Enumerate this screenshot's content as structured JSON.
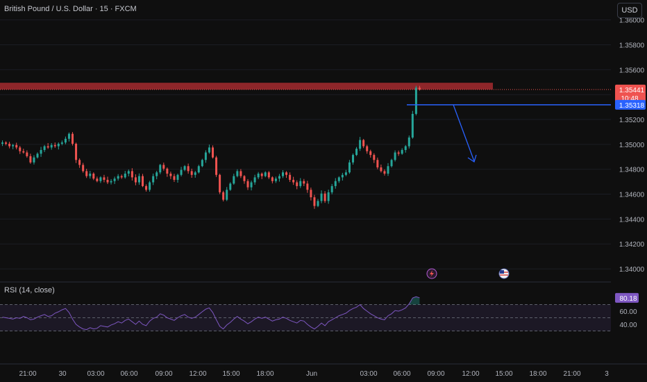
{
  "header": {
    "symbol": "British Pound / U.S. Dollar · 15 · FXCM",
    "currency": "USD"
  },
  "rsi": {
    "label": "RSI (14, close)",
    "value": "80.18",
    "ticks": [
      "60.00",
      "40.00"
    ]
  },
  "price_axis": {
    "ticks": [
      "1.36000",
      "1.35800",
      "1.35600",
      "1.35200",
      "1.35000",
      "1.34800",
      "1.34600",
      "1.34400",
      "1.34200",
      "1.34000"
    ],
    "last_price": "1.35441",
    "countdown": "10:48",
    "level_price": "1.35318"
  },
  "time_axis": {
    "ticks": [
      "21:00",
      "30",
      "03:00",
      "06:00",
      "09:00",
      "12:00",
      "15:00",
      "18:00",
      "Jun",
      "03:00",
      "06:00",
      "09:00",
      "12:00",
      "15:00",
      "18:00",
      "21:00",
      "3"
    ]
  },
  "colors": {
    "up": "#26a69a",
    "down": "#ef5350",
    "zone": "#a52a2f",
    "level": "#2962ff",
    "rsi": "#7e57c2"
  },
  "icons": [
    "flash-event-icon",
    "us-flag-event-icon"
  ],
  "chart_data": {
    "type": "candlestick",
    "symbol": "British Pound / U.S. Dollar",
    "interval": "15",
    "source": "FXCM",
    "last_price": 1.35441,
    "price_range": [
      1.339,
      1.3616
    ],
    "resistance_zone": [
      1.35441,
      1.35495
    ],
    "horizontal_level": 1.35318,
    "close": [
      1.35015,
      1.35005,
      1.34985,
      1.34995,
      1.34975,
      1.34945,
      1.34935,
      1.34905,
      1.34855,
      1.34895,
      1.34925,
      1.34955,
      1.34985,
      1.34975,
      1.34995,
      1.34985,
      1.35005,
      1.35015,
      1.35045,
      1.35085,
      1.35005,
      1.34875,
      1.34835,
      1.34785,
      1.34745,
      1.34765,
      1.34725,
      1.34705,
      1.34735,
      1.34715,
      1.34695,
      1.34705,
      1.34725,
      1.34745,
      1.34735,
      1.34765,
      1.34785,
      1.34735,
      1.34695,
      1.34745,
      1.34665,
      1.34635,
      1.34695,
      1.34745,
      1.34775,
      1.34835,
      1.34805,
      1.34765,
      1.34745,
      1.34715,
      1.34755,
      1.34795,
      1.34825,
      1.34785,
      1.34755,
      1.34775,
      1.34825,
      1.34875,
      1.34935,
      1.34975,
      1.34895,
      1.34755,
      1.34615,
      1.34555,
      1.34635,
      1.34685,
      1.34745,
      1.34785,
      1.34745,
      1.34705,
      1.34655,
      1.34695,
      1.34735,
      1.34765,
      1.34745,
      1.34775,
      1.34735,
      1.34705,
      1.34725,
      1.34745,
      1.34775,
      1.34755,
      1.34715,
      1.34695,
      1.34665,
      1.34705,
      1.34685,
      1.34635,
      1.34575,
      1.34505,
      1.34545,
      1.34605,
      1.34545,
      1.34615,
      1.34665,
      1.34705,
      1.34735,
      1.34755,
      1.34775,
      1.34855,
      1.34915,
      1.34965,
      1.35035,
      1.34985,
      1.34945,
      1.34915,
      1.34875,
      1.34815,
      1.34785,
      1.34765,
      1.34825,
      1.34875,
      1.34935,
      1.34925,
      1.34955,
      1.34985,
      1.35055,
      1.35245,
      1.35455,
      1.35441
    ],
    "rsi": [
      51,
      50,
      49,
      48,
      50,
      49,
      52,
      50,
      47,
      48,
      51,
      53,
      55,
      52,
      53,
      57,
      59,
      62,
      64,
      58,
      48,
      40,
      36,
      33,
      32,
      35,
      33,
      34,
      38,
      37,
      36,
      39,
      41,
      44,
      42,
      46,
      48,
      44,
      40,
      45,
      40,
      38,
      45,
      49,
      51,
      56,
      54,
      50,
      48,
      46,
      50,
      53,
      55,
      51,
      49,
      51,
      55,
      59,
      63,
      65,
      58,
      47,
      37,
      33,
      39,
      43,
      48,
      52,
      48,
      45,
      41,
      44,
      48,
      51,
      49,
      51,
      48,
      45,
      47,
      48,
      51,
      49,
      46,
      44,
      42,
      46,
      45,
      40,
      36,
      33,
      37,
      42,
      38,
      44,
      47,
      50,
      53,
      55,
      57,
      61,
      64,
      66,
      70,
      64,
      60,
      56,
      53,
      50,
      48,
      47,
      53,
      56,
      61,
      60,
      62,
      65,
      71,
      80,
      82,
      80.18
    ]
  }
}
